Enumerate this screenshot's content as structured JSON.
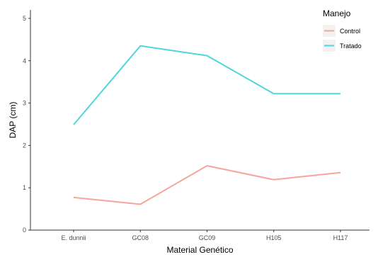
{
  "chart_data": {
    "type": "line",
    "xlabel": "Material Genético",
    "ylabel": "DAP (cm)",
    "categories": [
      "E. dunnii",
      "GC08",
      "GC09",
      "H105",
      "H117"
    ],
    "ylim": [
      0,
      5.2
    ],
    "yticks": [
      0,
      1,
      2,
      3,
      4,
      5
    ],
    "grid": false,
    "legend": {
      "title": "Manejo",
      "position": "top-right"
    },
    "series": [
      {
        "name": "Control",
        "color": "#f8a49b",
        "values": [
          0.77,
          0.61,
          1.52,
          1.19,
          1.36
        ]
      },
      {
        "name": "Tratado",
        "color": "#4fd6dc",
        "values": [
          2.49,
          4.35,
          4.12,
          3.22,
          3.22
        ]
      }
    ]
  }
}
